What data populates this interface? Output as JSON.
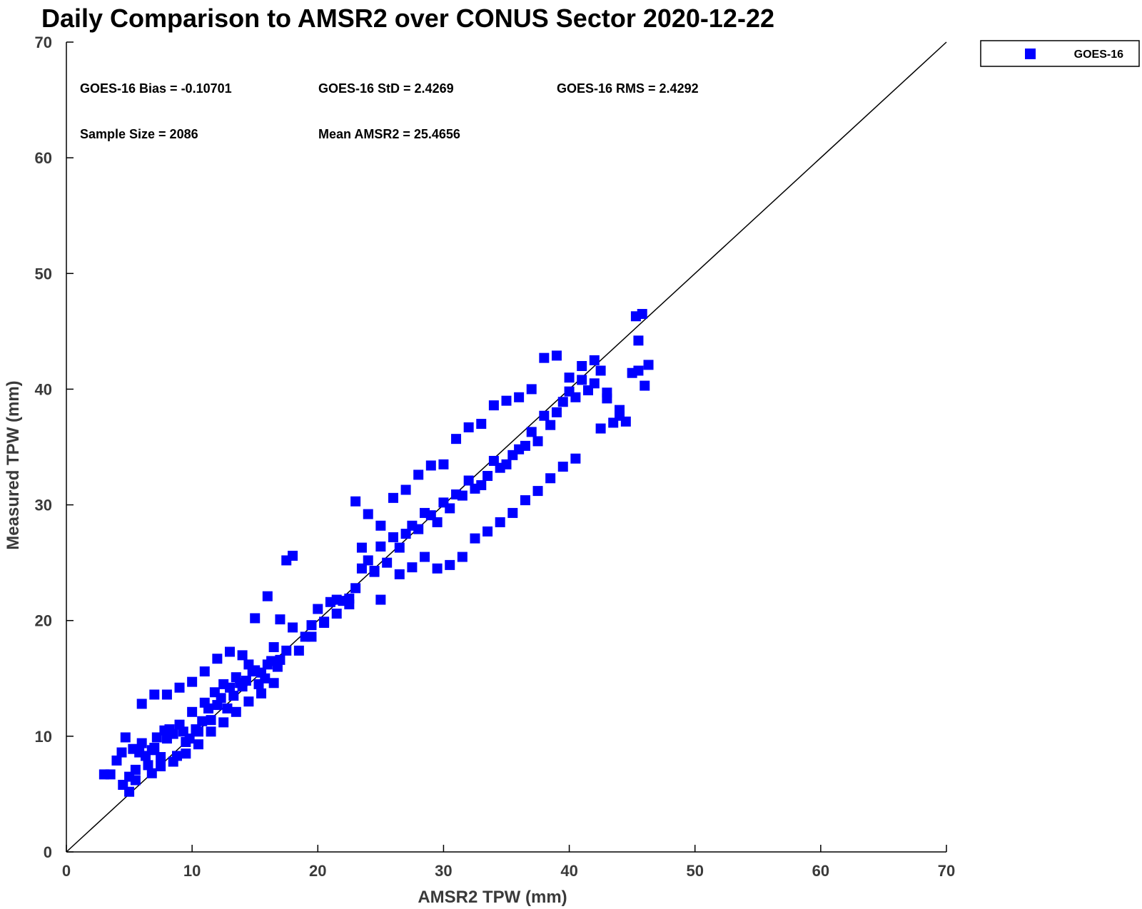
{
  "chart_data": {
    "type": "scatter",
    "title": "Daily Comparison to AMSR2 over CONUS Sector 2020-12-22",
    "xlabel": "AMSR2 TPW (mm)",
    "ylabel": "Measured TPW (mm)",
    "xlim": [
      0,
      70
    ],
    "ylim": [
      0,
      70
    ],
    "xticks": [
      0,
      10,
      20,
      30,
      40,
      50,
      60,
      70
    ],
    "yticks": [
      0,
      10,
      20,
      30,
      40,
      50,
      60,
      70
    ],
    "grid": false,
    "legend_position": "outside-top-right",
    "reference_line": {
      "type": "one-to-one",
      "from": [
        0,
        0
      ],
      "to": [
        70,
        70
      ]
    },
    "annotations": [
      "GOES-16 Bias = -0.10701",
      "GOES-16 StD = 2.4269",
      "GOES-16 RMS = 2.4292",
      "Sample Size = 2086",
      "Mean AMSR2 = 25.4656"
    ],
    "series": [
      {
        "name": "GOES-16",
        "color": "#0000ff",
        "marker": "square",
        "x": [
          3.0,
          3.5,
          4.0,
          4.4,
          4.7,
          5.0,
          5.3,
          5.5,
          5.8,
          6.0,
          6.3,
          6.5,
          6.8,
          7.0,
          7.2,
          7.5,
          7.8,
          8.0,
          8.2,
          8.5,
          8.8,
          9.0,
          9.3,
          9.5,
          9.8,
          10.0,
          10.3,
          10.5,
          10.8,
          11.0,
          11.3,
          11.5,
          11.8,
          12.0,
          12.3,
          12.5,
          12.8,
          13.0,
          13.3,
          13.5,
          13.8,
          14.0,
          14.3,
          14.5,
          14.8,
          15.0,
          15.3,
          15.5,
          15.8,
          16.0,
          16.3,
          16.5,
          16.8,
          17.0,
          17.5,
          18.0,
          18.5,
          19.0,
          19.5,
          20.0,
          20.5,
          21.0,
          21.5,
          22.0,
          22.5,
          23.0,
          23.5,
          24.0,
          24.5,
          25.0,
          25.5,
          26.0,
          26.5,
          27.0,
          27.5,
          28.0,
          28.5,
          29.0,
          29.5,
          30.0,
          30.5,
          31.0,
          31.5,
          32.0,
          32.5,
          33.0,
          33.5,
          34.0,
          34.5,
          35.0,
          35.5,
          36.0,
          36.5,
          37.0,
          37.5,
          38.0,
          38.5,
          39.0,
          39.5,
          40.0,
          40.5,
          41.0,
          41.5,
          42.0,
          42.5,
          43.0,
          43.5,
          44.0,
          44.5,
          45.0,
          45.5,
          46.0,
          6.0,
          7.0,
          8.0,
          9.0,
          10.0,
          11.0,
          12.0,
          13.0,
          14.0,
          15.0,
          16.0,
          17.0,
          17.5,
          18.0,
          23.0,
          24.0,
          25.0,
          26.0,
          27.0,
          28.0,
          29.0,
          30.0,
          31.0,
          32.0,
          33.0,
          34.0,
          35.0,
          36.0,
          37.0,
          38.0,
          39.0,
          40.0,
          41.0,
          42.0,
          43.0,
          44.0,
          45.8,
          46.3,
          45.5,
          45.3,
          23.5,
          24.5,
          25.0,
          26.5,
          27.5,
          28.5,
          29.5,
          30.5,
          31.5,
          32.5,
          33.5,
          34.5,
          35.5,
          36.5,
          37.5,
          38.5,
          39.5,
          40.5,
          42.5,
          6.8,
          7.5,
          8.5,
          9.5,
          10.5,
          11.5,
          12.5,
          13.5,
          14.5,
          15.5,
          16.5,
          19.5,
          20.5,
          21.5,
          22.5,
          5.0,
          4.5,
          5.5
        ],
        "y": [
          6.7,
          6.7,
          7.9,
          8.6,
          9.9,
          6.5,
          8.9,
          6.2,
          8.6,
          9.4,
          8.3,
          7.5,
          8.8,
          9.0,
          9.9,
          8.2,
          10.5,
          9.8,
          10.6,
          10.2,
          8.3,
          11.0,
          10.4,
          9.5,
          9.8,
          12.1,
          10.6,
          10.4,
          11.3,
          12.9,
          12.4,
          11.4,
          13.8,
          12.7,
          13.3,
          14.5,
          12.4,
          14.2,
          13.5,
          15.1,
          14.6,
          14.3,
          14.8,
          16.2,
          15.6,
          15.7,
          14.5,
          15.5,
          15.0,
          16.2,
          16.5,
          17.7,
          16.0,
          16.6,
          17.4,
          19.4,
          17.4,
          18.6,
          19.6,
          21.0,
          19.8,
          21.6,
          21.8,
          21.7,
          21.4,
          22.8,
          24.5,
          25.2,
          24.2,
          26.4,
          25.0,
          27.2,
          26.3,
          27.5,
          28.2,
          27.9,
          29.3,
          29.1,
          28.5,
          30.2,
          29.7,
          30.9,
          30.8,
          32.1,
          31.4,
          31.7,
          32.5,
          33.8,
          33.2,
          33.5,
          34.3,
          34.8,
          35.1,
          36.3,
          35.5,
          37.7,
          36.9,
          38.0,
          38.9,
          39.8,
          39.3,
          40.8,
          39.9,
          40.5,
          41.6,
          39.7,
          37.1,
          38.2,
          37.2,
          41.4,
          41.6,
          40.3,
          12.8,
          13.6,
          13.6,
          14.2,
          14.7,
          15.6,
          16.7,
          17.3,
          17.0,
          20.2,
          22.1,
          20.1,
          25.2,
          25.6,
          30.3,
          29.2,
          28.2,
          30.6,
          31.3,
          32.6,
          33.4,
          33.5,
          35.7,
          36.7,
          37.0,
          38.6,
          39.0,
          39.3,
          40.0,
          42.7,
          42.9,
          41.0,
          42.0,
          42.5,
          39.2,
          37.7,
          46.5,
          42.1,
          44.2,
          46.3,
          26.3,
          24.3,
          21.8,
          24.0,
          24.6,
          25.5,
          24.5,
          24.8,
          25.5,
          27.1,
          27.7,
          28.5,
          29.3,
          30.4,
          31.2,
          32.3,
          33.3,
          34.0,
          36.6,
          6.8,
          7.4,
          7.8,
          8.5,
          9.3,
          10.4,
          11.2,
          12.1,
          13.0,
          13.7,
          14.6,
          18.6,
          19.9,
          20.6,
          21.9,
          5.2,
          5.8,
          7.1
        ]
      }
    ],
    "legend": [
      "GOES-16"
    ]
  }
}
